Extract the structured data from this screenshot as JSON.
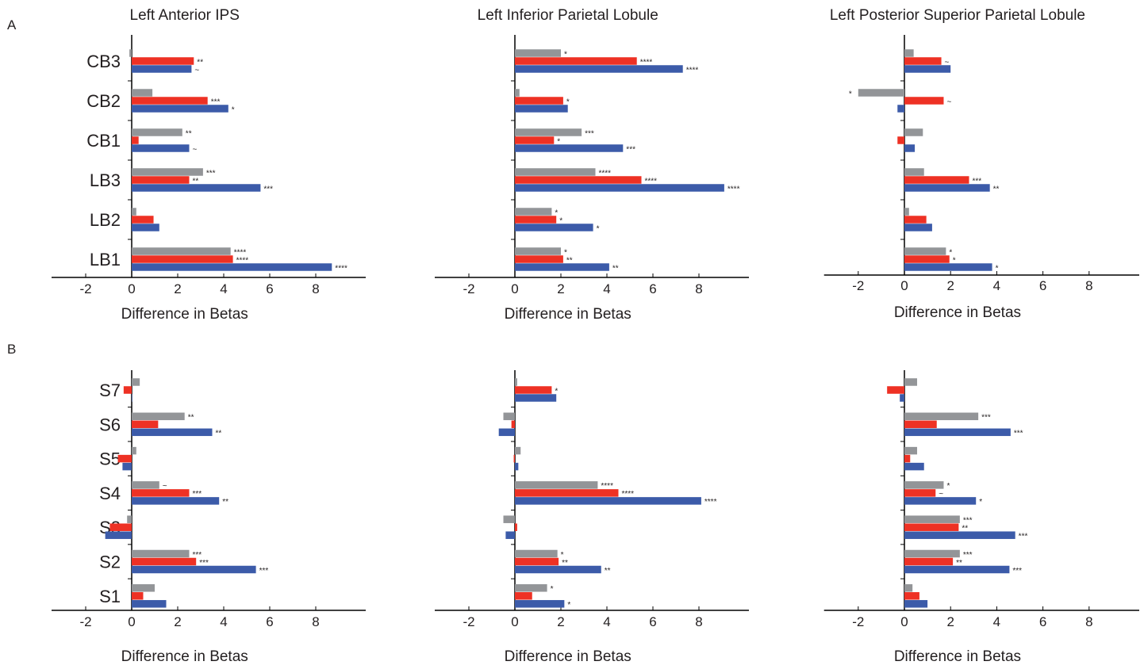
{
  "figure": {
    "panel_letters": [
      "A",
      "B"
    ],
    "colors": {
      "gray": "#939598",
      "red": "#ee3124",
      "blue": "#3c5ba9",
      "axis": "#000000"
    }
  },
  "chart_data": [
    {
      "type": "bar",
      "orientation": "horizontal",
      "title": "Left Anterior IPS",
      "xlabel": "Difference in Betas",
      "xlim": [
        -3,
        10
      ],
      "xticks": [
        -2,
        0,
        2,
        4,
        6,
        8
      ],
      "categories": [
        "CB3",
        "CB2",
        "CB1",
        "LB3",
        "LB2",
        "LB1"
      ],
      "series": [
        {
          "values": [
            -0.1,
            0.9,
            2.2,
            3.1,
            0.2,
            4.3
          ],
          "significance": [
            "",
            "",
            "**",
            "***",
            "",
            "****"
          ]
        },
        {
          "values": [
            2.7,
            3.3,
            0.3,
            2.5,
            0.95,
            4.4
          ],
          "significance": [
            "**",
            "***",
            "",
            "**",
            "",
            "****"
          ]
        },
        {
          "values": [
            2.6,
            4.2,
            2.5,
            5.6,
            1.2,
            8.7
          ],
          "significance": [
            "~",
            "*",
            "~",
            "***",
            "",
            "****"
          ]
        }
      ]
    },
    {
      "type": "bar",
      "orientation": "horizontal",
      "title": "Left Inferior Parietal Lobule",
      "xlabel": "Difference in Betas",
      "xlim": [
        -3,
        10
      ],
      "xticks": [
        -2,
        0,
        2,
        4,
        6,
        8
      ],
      "categories": [
        "CB3",
        "CB2",
        "CB1",
        "LB3",
        "LB2",
        "LB1"
      ],
      "series": [
        {
          "values": [
            2.0,
            0.2,
            2.9,
            3.5,
            1.6,
            2.0
          ],
          "significance": [
            "*",
            "",
            "***",
            "****",
            "*",
            "*"
          ]
        },
        {
          "values": [
            5.3,
            2.1,
            1.7,
            5.5,
            1.8,
            2.1
          ],
          "significance": [
            "****",
            "*",
            "*",
            "****",
            "*",
            "**"
          ]
        },
        {
          "values": [
            7.3,
            2.3,
            4.7,
            9.1,
            3.4,
            4.1
          ],
          "significance": [
            "****",
            "",
            "***",
            "****",
            "*",
            "**"
          ]
        }
      ]
    },
    {
      "type": "bar",
      "orientation": "horizontal",
      "title": "Left Posterior Superior Parietal Lobule",
      "xlabel": "Difference in Betas",
      "xlim": [
        -3,
        10
      ],
      "xticks": [
        -2,
        0,
        2,
        4,
        6,
        8
      ],
      "categories": [
        "CB3",
        "CB2",
        "CB1",
        "LB3",
        "LB2",
        "LB1"
      ],
      "series": [
        {
          "values": [
            0.4,
            -2.0,
            0.8,
            0.85,
            0.2,
            1.8
          ],
          "significance": [
            "",
            "*",
            "",
            "",
            "",
            "*"
          ]
        },
        {
          "values": [
            1.6,
            1.7,
            -0.3,
            2.8,
            0.95,
            1.95
          ],
          "significance": [
            "~",
            "~",
            "",
            "***",
            "",
            "*"
          ]
        },
        {
          "values": [
            2.0,
            -0.3,
            0.45,
            3.7,
            1.2,
            3.8
          ],
          "significance": [
            "",
            "",
            "",
            "**",
            "",
            "*"
          ]
        }
      ]
    },
    {
      "type": "bar",
      "orientation": "horizontal",
      "title": "",
      "xlabel": "Difference in Betas",
      "xlim": [
        -3,
        10
      ],
      "xticks": [
        -2,
        0,
        2,
        4,
        6,
        8
      ],
      "categories": [
        "S7",
        "S6",
        "S5",
        "S4",
        "S3",
        "S2",
        "S1"
      ],
      "series": [
        {
          "values": [
            0.35,
            2.3,
            0.2,
            1.2,
            -0.2,
            2.5,
            1.0
          ],
          "significance": [
            "",
            "**",
            "",
            "~",
            "",
            "***",
            ""
          ]
        },
        {
          "values": [
            -0.35,
            1.15,
            -0.6,
            2.5,
            -0.95,
            2.8,
            0.5
          ],
          "significance": [
            "",
            "",
            "",
            "***",
            "",
            "***",
            ""
          ]
        },
        {
          "values": [
            0.0,
            3.5,
            -0.4,
            3.8,
            -1.15,
            5.4,
            1.5
          ],
          "significance": [
            "",
            "**",
            "",
            "**",
            "",
            "***",
            ""
          ]
        }
      ]
    },
    {
      "type": "bar",
      "orientation": "horizontal",
      "title": "",
      "xlabel": "Difference in Betas",
      "xlim": [
        -3,
        10
      ],
      "xticks": [
        -2,
        0,
        2,
        4,
        6,
        8
      ],
      "categories": [
        "S7",
        "S6",
        "S5",
        "S4",
        "S3",
        "S2",
        "S1"
      ],
      "series": [
        {
          "values": [
            0.1,
            -0.5,
            0.25,
            3.6,
            -0.5,
            1.85,
            1.4
          ],
          "significance": [
            "",
            "",
            "",
            "****",
            "",
            "*",
            "*"
          ]
        },
        {
          "values": [
            1.6,
            -0.15,
            -0.05,
            4.5,
            0.1,
            1.9,
            0.75
          ],
          "significance": [
            "*",
            "",
            "",
            "****",
            "",
            "**",
            ""
          ]
        },
        {
          "values": [
            1.8,
            -0.7,
            0.15,
            8.1,
            -0.4,
            3.75,
            2.15
          ],
          "significance": [
            "",
            "",
            "",
            "****",
            "",
            "**",
            "*"
          ]
        }
      ]
    },
    {
      "type": "bar",
      "orientation": "horizontal",
      "title": "",
      "xlabel": "Difference in Betas",
      "xlim": [
        -3,
        10
      ],
      "xticks": [
        -2,
        0,
        2,
        4,
        6,
        8
      ],
      "categories": [
        "S7",
        "S6",
        "S5",
        "S4",
        "S3",
        "S2",
        "S1"
      ],
      "series": [
        {
          "values": [
            0.55,
            3.2,
            0.55,
            1.7,
            2.4,
            2.4,
            0.35
          ],
          "significance": [
            "",
            "***",
            "",
            "*",
            "***",
            "***",
            ""
          ]
        },
        {
          "values": [
            -0.75,
            1.4,
            0.25,
            1.35,
            2.35,
            2.1,
            0.65
          ],
          "significance": [
            "",
            "",
            "",
            "~",
            "**",
            "**",
            ""
          ]
        },
        {
          "values": [
            -0.2,
            4.6,
            0.85,
            3.1,
            4.8,
            4.55,
            1.0
          ],
          "significance": [
            "",
            "***",
            "",
            "*",
            "***",
            "***",
            ""
          ]
        }
      ]
    }
  ]
}
